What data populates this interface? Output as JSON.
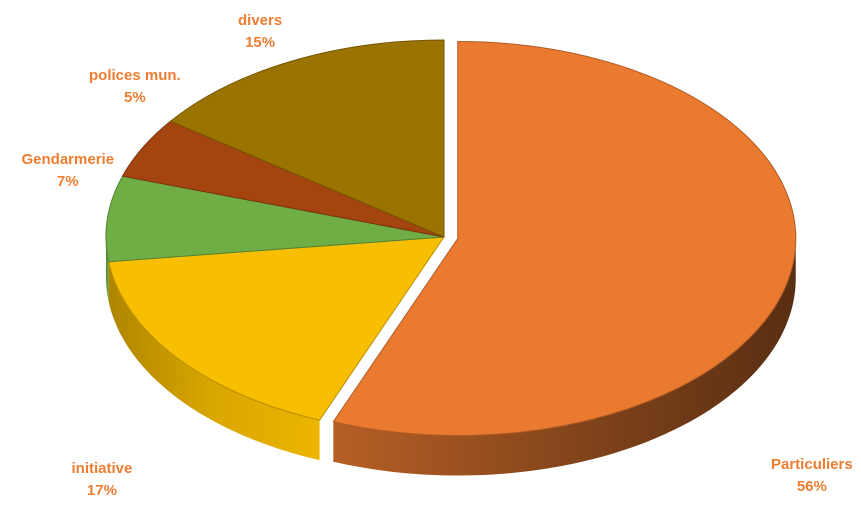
{
  "chart_data": {
    "type": "pie",
    "three_d": true,
    "exploded": true,
    "legend": "none",
    "data_labels": "category-and-percent, outside",
    "label_color": "#ED7D31",
    "slices": [
      {
        "label": "Particuliers",
        "value": 56,
        "percent_label": "56%",
        "color": "#E97A30"
      },
      {
        "label": "initiative",
        "value": 17,
        "percent_label": "17%",
        "color": "#F8BE00"
      },
      {
        "label": "Gendarmerie",
        "value": 7,
        "percent_label": "7%",
        "color": "#6FAE45"
      },
      {
        "label": "polices mun.",
        "value": 5,
        "percent_label": "5%",
        "color": "#A4440F"
      },
      {
        "label": "divers",
        "value": 15,
        "percent_label": "15%",
        "color": "#9A7300"
      }
    ]
  }
}
